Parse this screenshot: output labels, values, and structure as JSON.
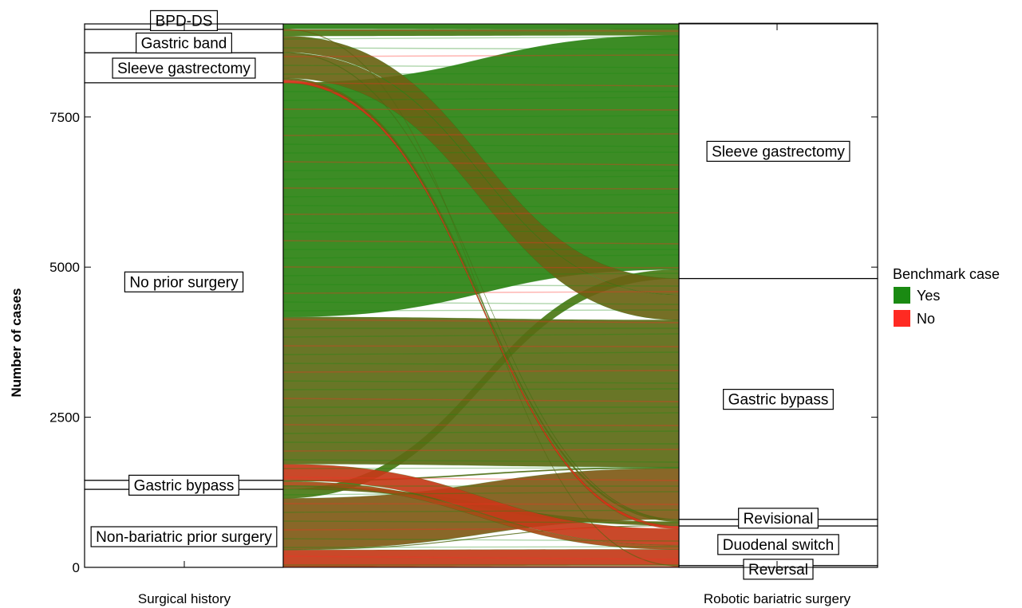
{
  "chart_data": {
    "type": "alluvial",
    "ylabel": "Number of cases",
    "axes": [
      "Surgical history",
      "Robotic bariatric surgery"
    ],
    "ylim": [
      0,
      9050
    ],
    "yticks": [
      0,
      2500,
      5000,
      7500
    ],
    "legend": {
      "title": "Benchmark case",
      "position": "right",
      "items": [
        {
          "label": "Yes",
          "color": "#1a8a12"
        },
        {
          "label": "No",
          "color": "#ff2a22"
        }
      ]
    },
    "left_strata": [
      {
        "label": "Non-bariatric prior surgery",
        "value": 1300
      },
      {
        "label": "Gastric bypass",
        "value": 150
      },
      {
        "label": "No prior surgery",
        "value": 6620
      },
      {
        "label": "Sleeve gastrectomy",
        "value": 500
      },
      {
        "label": "Gastric band",
        "value": 390
      },
      {
        "label": "BPD-DS",
        "value": 90
      }
    ],
    "right_strata": [
      {
        "label": "Reversal",
        "value": 30
      },
      {
        "label": "Duodenal switch",
        "value": 660
      },
      {
        "label": "Revisional",
        "value": 110
      },
      {
        "label": "Gastric bypass",
        "value": 4010
      },
      {
        "label": "Sleeve gastrectomy",
        "value": 4250
      }
    ],
    "flows": [
      {
        "from": "Non-bariatric prior surgery",
        "to": "Reversal",
        "value": 20
      },
      {
        "from": "Non-bariatric prior surgery",
        "to": "Duodenal switch",
        "value": 270
      },
      {
        "from": "Non-bariatric prior surgery",
        "to": "Revisional",
        "value": 10
      },
      {
        "from": "Non-bariatric prior surgery",
        "to": "Gastric bypass",
        "value": 850
      },
      {
        "from": "Non-bariatric prior surgery",
        "to": "Sleeve gastrectomy",
        "value": 150
      },
      {
        "from": "Gastric bypass",
        "to": "Revisional",
        "value": 60
      },
      {
        "from": "Gastric bypass",
        "to": "Duodenal switch",
        "value": 70
      },
      {
        "from": "Gastric bypass",
        "to": "Gastric bypass",
        "value": 20
      },
      {
        "from": "No prior surgery",
        "to": "Duodenal switch",
        "value": 270
      },
      {
        "from": "No prior surgery",
        "to": "Gastric bypass",
        "value": 2450
      },
      {
        "from": "No prior surgery",
        "to": "Sleeve gastrectomy",
        "value": 3900
      },
      {
        "from": "Sleeve gastrectomy",
        "to": "Duodenal switch",
        "value": 50
      },
      {
        "from": "Sleeve gastrectomy",
        "to": "Revisional",
        "value": 30
      },
      {
        "from": "Sleeve gastrectomy",
        "to": "Gastric bypass",
        "value": 420
      },
      {
        "from": "Gastric band",
        "to": "Revisional",
        "value": 10
      },
      {
        "from": "Gastric band",
        "to": "Gastric bypass",
        "value": 270
      },
      {
        "from": "Gastric band",
        "to": "Sleeve gastrectomy",
        "value": 110
      },
      {
        "from": "BPD-DS",
        "to": "Reversal",
        "value": 10
      },
      {
        "from": "BPD-DS",
        "to": "Sleeve gastrectomy",
        "value": 80
      }
    ],
    "grid": false
  }
}
